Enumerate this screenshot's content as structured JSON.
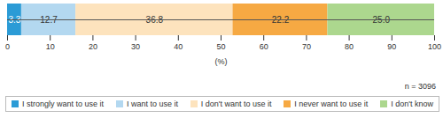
{
  "chart_data": {
    "type": "bar",
    "orientation": "horizontal",
    "stacked": true,
    "data_labels": true,
    "tick_labels": "x",
    "legend": "bottom",
    "categories": [
      null
    ],
    "xlabel": "(%)",
    "xlim": [
      0,
      100
    ],
    "xticks": [
      0,
      10,
      20,
      30,
      40,
      50,
      60,
      70,
      80,
      90,
      100
    ],
    "annotations": [
      "n = 3096"
    ],
    "series": [
      {
        "name": "I strongly want to use it",
        "color": "#2b9bd6",
        "values": [
          3.3
        ],
        "value_labels": [
          "3.3"
        ]
      },
      {
        "name": "I want to use it",
        "color": "#b3d8f0",
        "values": [
          12.7
        ],
        "value_labels": [
          "12.7"
        ]
      },
      {
        "name": "I don't want to use it",
        "color": "#fde3bd",
        "values": [
          36.8
        ],
        "value_labels": [
          "36.8"
        ]
      },
      {
        "name": "I never want to use it",
        "color": "#f6a943",
        "values": [
          22.2
        ],
        "value_labels": [
          "22.2"
        ]
      },
      {
        "name": "I don't know",
        "color": "#acd78e",
        "values": [
          25.0
        ],
        "value_labels": [
          "25.0"
        ]
      }
    ]
  }
}
